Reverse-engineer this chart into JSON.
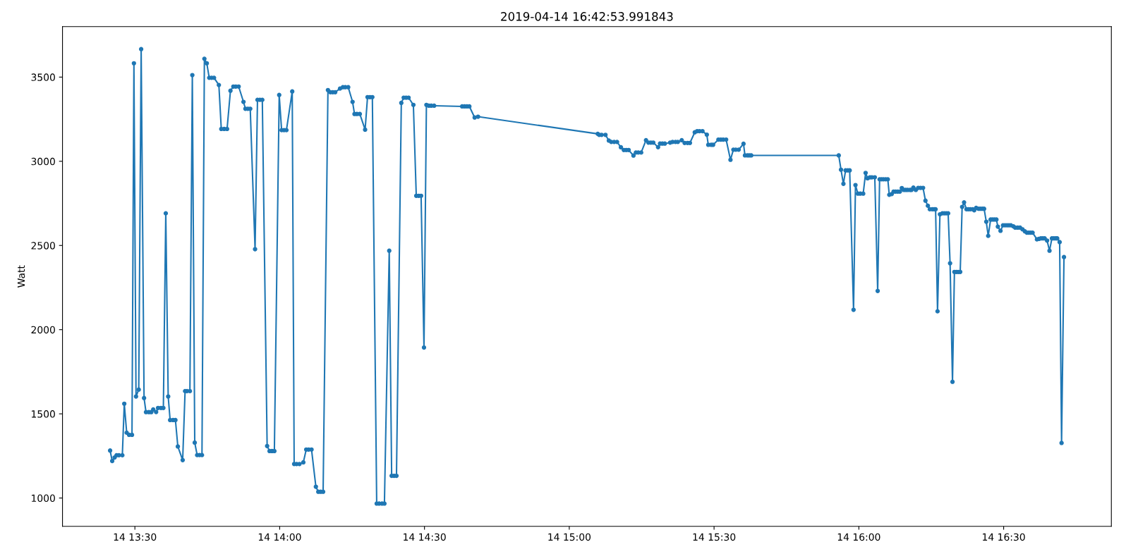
{
  "chart_data": {
    "type": "line",
    "title": "2019-04-14 16:42:53.991843",
    "ylabel": "Watt",
    "marker": "circle",
    "line_style": "solid",
    "xlim": [
      "2019-04-14T13:15:00",
      "2019-04-14T16:52:19"
    ],
    "ylim": [
      832,
      3800
    ],
    "xticks": [
      {
        "value": "2019-04-14T13:30",
        "label": "14 13:30"
      },
      {
        "value": "2019-04-14T14:00",
        "label": "14 14:00"
      },
      {
        "value": "2019-04-14T14:30",
        "label": "14 14:30"
      },
      {
        "value": "2019-04-14T15:00",
        "label": "14 15:00"
      },
      {
        "value": "2019-04-14T15:30",
        "label": "14 15:30"
      },
      {
        "value": "2019-04-14T16:00",
        "label": "14 16:00"
      },
      {
        "value": "2019-04-14T16:30",
        "label": "14 16:30"
      }
    ],
    "yticks": [
      1000,
      1500,
      2000,
      2500,
      3000,
      3500
    ],
    "x": [
      "2019-04-14T13:24:52",
      "2019-04-14T13:25:18",
      "2019-04-14T13:25:48",
      "2019-04-14T13:26:12",
      "2019-04-14T13:26:42",
      "2019-04-14T13:27:24",
      "2019-04-14T13:27:48",
      "2019-04-14T13:28:18",
      "2019-04-14T13:28:48",
      "2019-04-14T13:29:24",
      "2019-04-14T13:29:48",
      "2019-04-14T13:30:14",
      "2019-04-14T13:30:48",
      "2019-04-14T13:31:18",
      "2019-04-14T13:31:54",
      "2019-04-14T13:32:18",
      "2019-04-14T13:32:54",
      "2019-04-14T13:33:24",
      "2019-04-14T13:33:48",
      "2019-04-14T13:34:24",
      "2019-04-14T13:34:48",
      "2019-04-14T13:35:24",
      "2019-04-14T13:35:54",
      "2019-04-14T13:36:24",
      "2019-04-14T13:36:54",
      "2019-04-14T13:37:18",
      "2019-04-14T13:37:54",
      "2019-04-14T13:38:24",
      "2019-04-14T13:38:54",
      "2019-04-14T13:39:54",
      "2019-04-14T13:40:24",
      "2019-04-14T13:40:48",
      "2019-04-14T13:41:24",
      "2019-04-14T13:41:54",
      "2019-04-14T13:42:24",
      "2019-04-14T13:42:54",
      "2019-04-14T13:43:24",
      "2019-04-14T13:43:54",
      "2019-04-14T13:44:24",
      "2019-04-14T13:44:54",
      "2019-04-14T13:45:24",
      "2019-04-14T13:45:54",
      "2019-04-14T13:46:24",
      "2019-04-14T13:47:24",
      "2019-04-14T13:47:54",
      "2019-04-14T13:48:30",
      "2019-04-14T13:49:06",
      "2019-04-14T13:49:48",
      "2019-04-14T13:50:24",
      "2019-04-14T13:50:54",
      "2019-04-14T13:51:30",
      "2019-04-14T13:52:30",
      "2019-04-14T13:52:54",
      "2019-04-14T13:53:24",
      "2019-04-14T13:53:54",
      "2019-04-14T13:54:54",
      "2019-04-14T13:55:24",
      "2019-04-14T13:55:54",
      "2019-04-14T13:56:24",
      "2019-04-14T13:57:24",
      "2019-04-14T13:57:54",
      "2019-04-14T13:58:24",
      "2019-04-14T13:58:54",
      "2019-04-14T13:59:54",
      "2019-04-14T14:00:24",
      "2019-04-14T14:00:54",
      "2019-04-14T14:01:24",
      "2019-04-14T14:02:36",
      "2019-04-14T14:03:00",
      "2019-04-14T14:03:30",
      "2019-04-14T14:04:06",
      "2019-04-14T14:04:54",
      "2019-04-14T14:05:30",
      "2019-04-14T14:06:00",
      "2019-04-14T14:06:36",
      "2019-04-14T14:07:30",
      "2019-04-14T14:08:00",
      "2019-04-14T14:08:30",
      "2019-04-14T14:09:00",
      "2019-04-14T14:10:00",
      "2019-04-14T14:10:30",
      "2019-04-14T14:11:00",
      "2019-04-14T14:11:30",
      "2019-04-14T14:12:30",
      "2019-04-14T14:13:06",
      "2019-04-14T14:13:36",
      "2019-04-14T14:14:12",
      "2019-04-14T14:15:06",
      "2019-04-14T14:15:30",
      "2019-04-14T14:16:00",
      "2019-04-14T14:16:36",
      "2019-04-14T14:17:42",
      "2019-04-14T14:18:12",
      "2019-04-14T14:18:42",
      "2019-04-14T14:19:12",
      "2019-04-14T14:20:06",
      "2019-04-14T14:20:36",
      "2019-04-14T14:21:12",
      "2019-04-14T14:21:42",
      "2019-04-14T14:22:42",
      "2019-04-14T14:23:12",
      "2019-04-14T14:23:42",
      "2019-04-14T14:24:12",
      "2019-04-14T14:25:12",
      "2019-04-14T14:25:42",
      "2019-04-14T14:26:12",
      "2019-04-14T14:26:42",
      "2019-04-14T14:27:42",
      "2019-04-14T14:28:18",
      "2019-04-14T14:28:48",
      "2019-04-14T14:29:18",
      "2019-04-14T14:29:54",
      "2019-04-14T14:30:24",
      "2019-04-14T14:30:54",
      "2019-04-14T14:31:24",
      "2019-04-14T14:32:00",
      "2019-04-14T14:37:48",
      "2019-04-14T14:38:18",
      "2019-04-14T14:38:48",
      "2019-04-14T14:39:18",
      "2019-04-14T14:40:24",
      "2019-04-14T14:41:06",
      "2019-04-14T15:05:54",
      "2019-04-14T15:06:12",
      "2019-04-14T15:06:42",
      "2019-04-14T15:07:30",
      "2019-04-14T15:08:12",
      "2019-04-14T15:08:42",
      "2019-04-14T15:09:18",
      "2019-04-14T15:09:54",
      "2019-04-14T15:10:42",
      "2019-04-14T15:11:18",
      "2019-04-14T15:11:48",
      "2019-04-14T15:12:18",
      "2019-04-14T15:13:18",
      "2019-04-14T15:13:48",
      "2019-04-14T15:14:18",
      "2019-04-14T15:14:54",
      "2019-04-14T15:15:54",
      "2019-04-14T15:16:24",
      "2019-04-14T15:16:54",
      "2019-04-14T15:17:24",
      "2019-04-14T15:18:24",
      "2019-04-14T15:18:48",
      "2019-04-14T15:19:18",
      "2019-04-14T15:19:48",
      "2019-04-14T15:20:54",
      "2019-04-14T15:21:24",
      "2019-04-14T15:22:00",
      "2019-04-14T15:22:30",
      "2019-04-14T15:23:18",
      "2019-04-14T15:23:54",
      "2019-04-14T15:24:30",
      "2019-04-14T15:25:00",
      "2019-04-14T15:26:00",
      "2019-04-14T15:26:30",
      "2019-04-14T15:27:00",
      "2019-04-14T15:27:36",
      "2019-04-14T15:28:30",
      "2019-04-14T15:28:48",
      "2019-04-14T15:29:24",
      "2019-04-14T15:29:48",
      "2019-04-14T15:30:54",
      "2019-04-14T15:31:24",
      "2019-04-14T15:31:54",
      "2019-04-14T15:32:30",
      "2019-04-14T15:33:24",
      "2019-04-14T15:34:00",
      "2019-04-14T15:34:30",
      "2019-04-14T15:35:06",
      "2019-04-14T15:36:06",
      "2019-04-14T15:36:24",
      "2019-04-14T15:36:54",
      "2019-04-14T15:37:18",
      "2019-04-14T15:37:42",
      "2019-04-14T15:55:50",
      "2019-04-14T15:56:18",
      "2019-04-14T15:56:48",
      "2019-04-14T15:57:15",
      "2019-04-14T15:57:42",
      "2019-04-14T15:58:06",
      "2019-04-14T15:58:54",
      "2019-04-14T15:59:18",
      "2019-04-14T15:59:48",
      "2019-04-14T16:00:18",
      "2019-04-14T16:00:54",
      "2019-04-14T16:01:24",
      "2019-04-14T16:01:48",
      "2019-04-14T16:02:18",
      "2019-04-14T16:02:42",
      "2019-04-14T16:03:18",
      "2019-04-14T16:03:54",
      "2019-04-14T16:04:18",
      "2019-04-14T16:04:42",
      "2019-04-14T16:05:06",
      "2019-04-14T16:05:33",
      "2019-04-14T16:06:00",
      "2019-04-14T16:06:18",
      "2019-04-14T16:06:48",
      "2019-04-14T16:07:12",
      "2019-04-14T16:07:36",
      "2019-04-14T16:08:03",
      "2019-04-14T16:08:30",
      "2019-04-14T16:08:54",
      "2019-04-14T16:09:18",
      "2019-04-14T16:09:42",
      "2019-04-14T16:10:06",
      "2019-04-14T16:10:36",
      "2019-04-14T16:10:54",
      "2019-04-14T16:11:18",
      "2019-04-14T16:11:48",
      "2019-04-14T16:12:18",
      "2019-04-14T16:12:48",
      "2019-04-14T16:13:18",
      "2019-04-14T16:13:48",
      "2019-04-14T16:14:18",
      "2019-04-14T16:14:42",
      "2019-04-14T16:15:12",
      "2019-04-14T16:15:36",
      "2019-04-14T16:15:54",
      "2019-04-14T16:16:18",
      "2019-04-14T16:16:48",
      "2019-04-14T16:17:18",
      "2019-04-14T16:17:42",
      "2019-04-14T16:18:06",
      "2019-04-14T16:18:30",
      "2019-04-14T16:18:54",
      "2019-04-14T16:19:24",
      "2019-04-14T16:19:48",
      "2019-04-14T16:20:12",
      "2019-04-14T16:20:36",
      "2019-04-14T16:21:00",
      "2019-04-14T16:21:24",
      "2019-04-14T16:21:48",
      "2019-04-14T16:22:18",
      "2019-04-14T16:22:42",
      "2019-04-14T16:23:06",
      "2019-04-14T16:23:36",
      "2019-04-14T16:23:54",
      "2019-04-14T16:24:18",
      "2019-04-14T16:24:48",
      "2019-04-14T16:25:12",
      "2019-04-14T16:25:36",
      "2019-04-14T16:25:57",
      "2019-04-14T16:26:24",
      "2019-04-14T16:26:48",
      "2019-04-14T16:27:18",
      "2019-04-14T16:27:42",
      "2019-04-14T16:28:06",
      "2019-04-14T16:28:30",
      "2019-04-14T16:28:48",
      "2019-04-14T16:29:21",
      "2019-04-14T16:29:52",
      "2019-04-14T16:30:17",
      "2019-04-14T16:30:42",
      "2019-04-14T16:31:06",
      "2019-04-14T16:31:30",
      "2019-04-14T16:32:00",
      "2019-04-14T16:32:24",
      "2019-04-14T16:32:54",
      "2019-04-14T16:33:24",
      "2019-04-14T16:33:54",
      "2019-04-14T16:34:24",
      "2019-04-14T16:34:48",
      "2019-04-14T16:35:12",
      "2019-04-14T16:35:36",
      "2019-04-14T16:36:00",
      "2019-04-14T16:36:54",
      "2019-04-14T16:37:18",
      "2019-04-14T16:37:42",
      "2019-04-14T16:38:06",
      "2019-04-14T16:38:30",
      "2019-04-14T16:39:00",
      "2019-04-14T16:39:30",
      "2019-04-14T16:40:00",
      "2019-04-14T16:40:24",
      "2019-04-14T16:40:48",
      "2019-04-14T16:41:06",
      "2019-04-14T16:41:36",
      "2019-04-14T16:42:00",
      "2019-04-14T16:42:30"
    ],
    "series": [
      {
        "color": "#1f77b4",
        "values": [
          1282,
          1220,
          1241,
          1254,
          1254,
          1254,
          1560,
          1388,
          1375,
          1375,
          3582,
          1603,
          1644,
          3666,
          1594,
          1510,
          1510,
          1510,
          1526,
          1511,
          1535,
          1535,
          1535,
          2691,
          1603,
          1463,
          1463,
          1463,
          1306,
          1225,
          1635,
          1635,
          1635,
          3512,
          1329,
          1255,
          1255,
          1255,
          3609,
          3582,
          3496,
          3496,
          3496,
          3453,
          3192,
          3192,
          3192,
          3419,
          3444,
          3444,
          3444,
          3353,
          3312,
          3312,
          3312,
          2478,
          3365,
          3365,
          3365,
          1309,
          1279,
          1279,
          1279,
          3394,
          3185,
          3185,
          3185,
          3415,
          1202,
          1202,
          1202,
          1212,
          1288,
          1288,
          1288,
          1067,
          1037,
          1037,
          1037,
          3423,
          3410,
          3410,
          3410,
          3432,
          3440,
          3440,
          3440,
          3353,
          3281,
          3281,
          3281,
          3188,
          3381,
          3381,
          3381,
          967,
          967,
          967,
          967,
          2469,
          1132,
          1132,
          1132,
          3347,
          3378,
          3378,
          3378,
          3335,
          2795,
          2795,
          2795,
          1894,
          3335,
          3330,
          3330,
          3330,
          3326,
          3326,
          3326,
          3326,
          3260,
          3265,
          3163,
          3157,
          3157,
          3157,
          3123,
          3115,
          3115,
          3115,
          3083,
          3067,
          3067,
          3067,
          3034,
          3052,
          3052,
          3052,
          3125,
          3111,
          3111,
          3111,
          3084,
          3105,
          3105,
          3105,
          3111,
          3115,
          3115,
          3115,
          3125,
          3109,
          3109,
          3109,
          3172,
          3179,
          3179,
          3179,
          3158,
          3098,
          3098,
          3098,
          3129,
          3129,
          3129,
          3129,
          3009,
          3069,
          3069,
          3069,
          3104,
          3035,
          3035,
          3035,
          3035,
          3035,
          2950,
          2866,
          2946,
          2946,
          2946,
          2118,
          2859,
          2808,
          2808,
          2808,
          2931,
          2899,
          2905,
          2905,
          2905,
          2230,
          2893,
          2893,
          2893,
          2893,
          2893,
          2801,
          2805,
          2820,
          2820,
          2820,
          2820,
          2841,
          2830,
          2830,
          2830,
          2830,
          2830,
          2844,
          2830,
          2842,
          2842,
          2842,
          2766,
          2736,
          2715,
          2715,
          2715,
          2715,
          2109,
          2685,
          2691,
          2691,
          2691,
          2691,
          2394,
          1690,
          2343,
          2343,
          2343,
          2343,
          2729,
          2756,
          2715,
          2715,
          2715,
          2715,
          2709,
          2723,
          2718,
          2718,
          2718,
          2718,
          2641,
          2557,
          2654,
          2654,
          2654,
          2654,
          2612,
          2587,
          2620,
          2620,
          2620,
          2620,
          2620,
          2614,
          2606,
          2606,
          2606,
          2596,
          2584,
          2576,
          2576,
          2576,
          2576,
          2536,
          2539,
          2542,
          2542,
          2542,
          2529,
          2469,
          2542,
          2542,
          2542,
          2542,
          2520,
          1327,
          2431
        ]
      }
    ]
  }
}
